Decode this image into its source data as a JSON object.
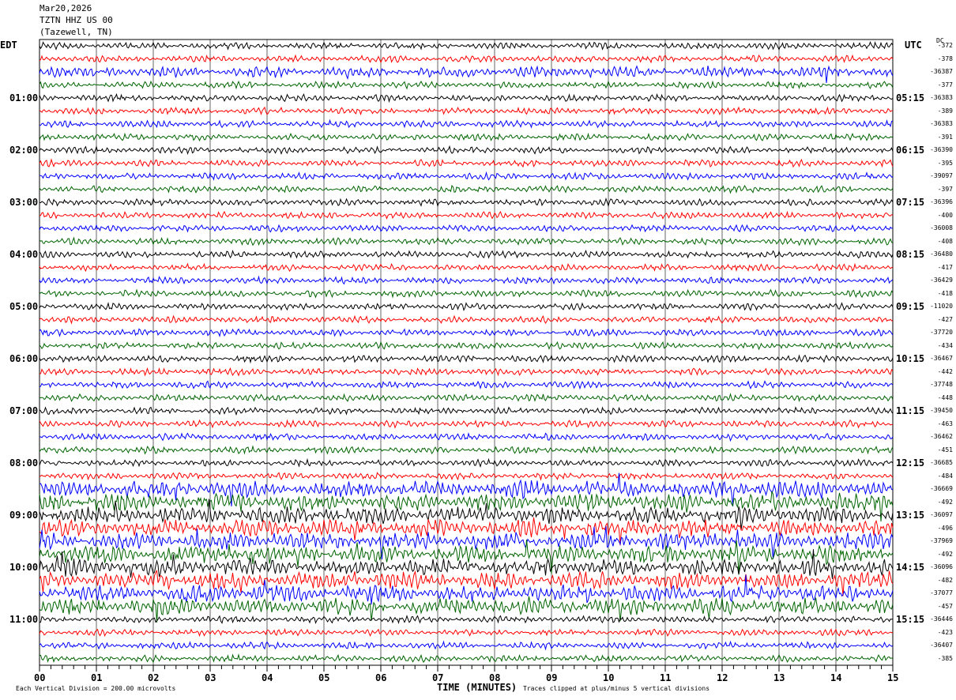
{
  "header": {
    "date": "Mar20,2026",
    "station": "TZTN HHZ US 00",
    "location": "(Tazewell, TN)"
  },
  "left_zone": "EDT",
  "right_zone": "UTC",
  "dc_label": "DC",
  "footer": {
    "scale": "Each Vertical Division =  200.00 microvolts",
    "xlabel": "TIME (MINUTES)",
    "clip_note": "Traces clipped at plus/minus 5 vertical divisions"
  },
  "colors": [
    "#000000",
    "#ff0000",
    "#0000ff",
    "#006400"
  ],
  "chart_data": {
    "type": "line",
    "xlabel": "TIME (MINUTES)",
    "x_ticks": [
      "00",
      "01",
      "02",
      "03",
      "04",
      "05",
      "06",
      "07",
      "08",
      "09",
      "10",
      "11",
      "12",
      "13",
      "14",
      "15"
    ],
    "xlim": [
      0,
      15
    ],
    "left_hours": [
      "01:00",
      "02:00",
      "03:00",
      "04:00",
      "05:00",
      "06:00",
      "07:00",
      "08:00",
      "09:00",
      "10:00",
      "11:00"
    ],
    "right_hours": [
      "05:15",
      "06:15",
      "07:15",
      "08:15",
      "09:15",
      "10:15",
      "11:15",
      "12:15",
      "13:15",
      "14:15",
      "15:15"
    ],
    "dc_values": [
      "-372",
      "-378",
      "-36387",
      "-377",
      "-36383",
      "-389",
      "-36383",
      "-391",
      "-36390",
      "-395",
      "-39097",
      "-397",
      "-36396",
      "-400",
      "-36008",
      "-408",
      "-36480",
      "-417",
      "-36429",
      "-418",
      "-11020",
      "-427",
      "-37720",
      "-434",
      "-36467",
      "-442",
      "-37748",
      "-448",
      "-39450",
      "-463",
      "-36462",
      "-451",
      "-36685",
      "-484",
      "-36669",
      "-492",
      "-36097",
      "-496",
      "-37969",
      "-492",
      "-36096",
      "-482",
      "-37077",
      "-457",
      "-36446",
      "-423",
      "-36407",
      "-385"
    ]
  }
}
